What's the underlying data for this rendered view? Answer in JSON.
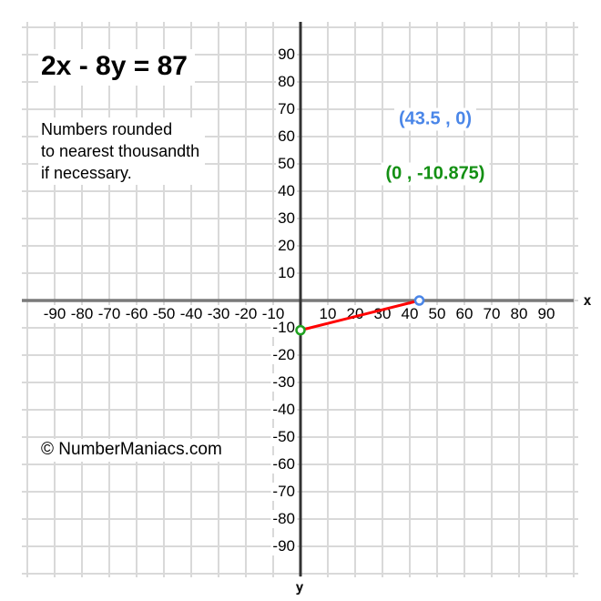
{
  "page": {
    "equation_title": "2x - 8y = 87",
    "note_lines": [
      "Numbers rounded",
      "to nearest thousandth",
      "if necessary."
    ],
    "copyright": "© NumberManiacs.com"
  },
  "annotations": {
    "x_intercept_label": "(43.5 , 0)",
    "y_intercept_label": "(0 , -10.875)"
  },
  "axes": {
    "x_label": "x",
    "y_label": "y"
  },
  "colors": {
    "x_intercept_text": "#4a86e8",
    "y_intercept_text": "#149014",
    "x_intercept_marker": "#4a86e8",
    "y_intercept_marker": "#1fa11f",
    "line": "#ff0000",
    "grid": "#d9d9d9",
    "x_axis": "#7a7a7a",
    "y_axis": "#333333",
    "text": "#000000"
  },
  "chart_data": {
    "type": "line",
    "title": "2x - 8y = 87",
    "equation": "2x - 8y = 87",
    "series": [
      {
        "name": "2x - 8y = 87",
        "points": [
          [
            0,
            -10.875
          ],
          [
            43.5,
            0
          ]
        ],
        "color": "#ff0000"
      }
    ],
    "markers": [
      {
        "x": 43.5,
        "y": 0,
        "label": "(43.5 , 0)",
        "color": "#4a86e8"
      },
      {
        "x": 0,
        "y": -10.875,
        "label": "(0 , -10.875)",
        "color": "#1fa11f"
      }
    ],
    "x_ticks": [
      -90,
      -80,
      -70,
      -60,
      -50,
      -40,
      -30,
      -20,
      -10,
      10,
      20,
      30,
      40,
      50,
      60,
      70,
      80,
      90
    ],
    "y_ticks": [
      90,
      80,
      70,
      60,
      50,
      40,
      30,
      20,
      10,
      -10,
      -20,
      -30,
      -40,
      -50,
      -60,
      -70,
      -80,
      -90
    ],
    "xlim": [
      -100,
      100
    ],
    "ylim": [
      -100,
      100
    ],
    "grid_step": 10,
    "xlabel": "x",
    "ylabel": "y",
    "grid": true,
    "legend": false
  }
}
